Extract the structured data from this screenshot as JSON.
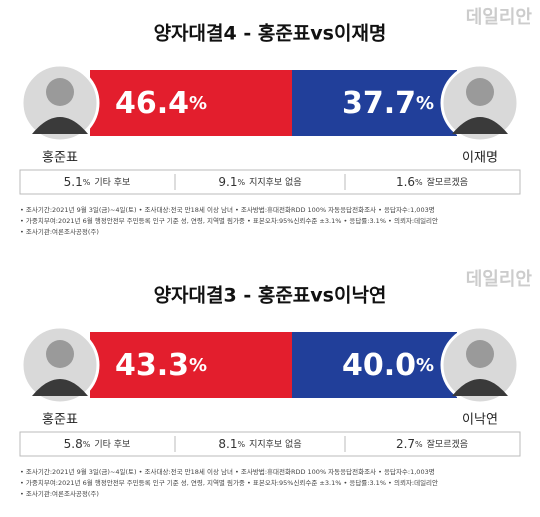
{
  "watermark": "데일리안",
  "panels": [
    {
      "title": "양자대결4 - 홍준표vs이재명",
      "left": {
        "name": "홍준표",
        "value": "46.4",
        "unit": "%"
      },
      "right": {
        "name": "이재명",
        "value": "37.7",
        "unit": "%"
      },
      "others": [
        {
          "value": "5.1",
          "unit": "%",
          "label": "기타 후보"
        },
        {
          "value": "9.1",
          "unit": "%",
          "label": "지지후보 없음"
        },
        {
          "value": "1.6",
          "unit": "%",
          "label": "잘모르겠음"
        }
      ],
      "notes": [
        "• 조사기간:2021년 9월 3일(금)~4일(토)   • 조사대상:전국 만18세 이상 남녀   • 조사방법:휴대전화RDD 100% 자동응답전화조사   • 응답자수:1,003명",
        "• 가중치부여:2021년 6월 행정안전부 주민등록 인구 기준 성, 연령, 지역별 림가중   • 표본오차:95%신뢰수준 ±3.1%   • 응답률:3.1%   • 의뢰자:데일리안",
        "• 조사기관:여론조사공정(주)"
      ]
    },
    {
      "title": "양자대결3 - 홍준표vs이낙연",
      "left": {
        "name": "홍준표",
        "value": "43.3",
        "unit": "%"
      },
      "right": {
        "name": "이낙연",
        "value": "40.0",
        "unit": "%"
      },
      "others": [
        {
          "value": "5.8",
          "unit": "%",
          "label": "기타 후보"
        },
        {
          "value": "8.1",
          "unit": "%",
          "label": "지지후보 없음"
        },
        {
          "value": "2.7",
          "unit": "%",
          "label": "잘모르겠음"
        }
      ],
      "notes": [
        "• 조사기간:2021년 9월 3일(금)~4일(토)   • 조사대상:전국 만18세 이상 남녀   • 조사방법:휴대전화RDD 100% 자동응답전화조사   • 응답자수:1,003명",
        "• 가중치부여:2021년 6월 행정안전부 주민등록 인구 기준 성, 연령, 지역별 림가중   • 표본오차:95%신뢰수준 ±3.1%   • 응답률:3.1%   • 의뢰자:데일리안",
        "• 조사기관:여론조사공정(주)"
      ]
    }
  ]
}
